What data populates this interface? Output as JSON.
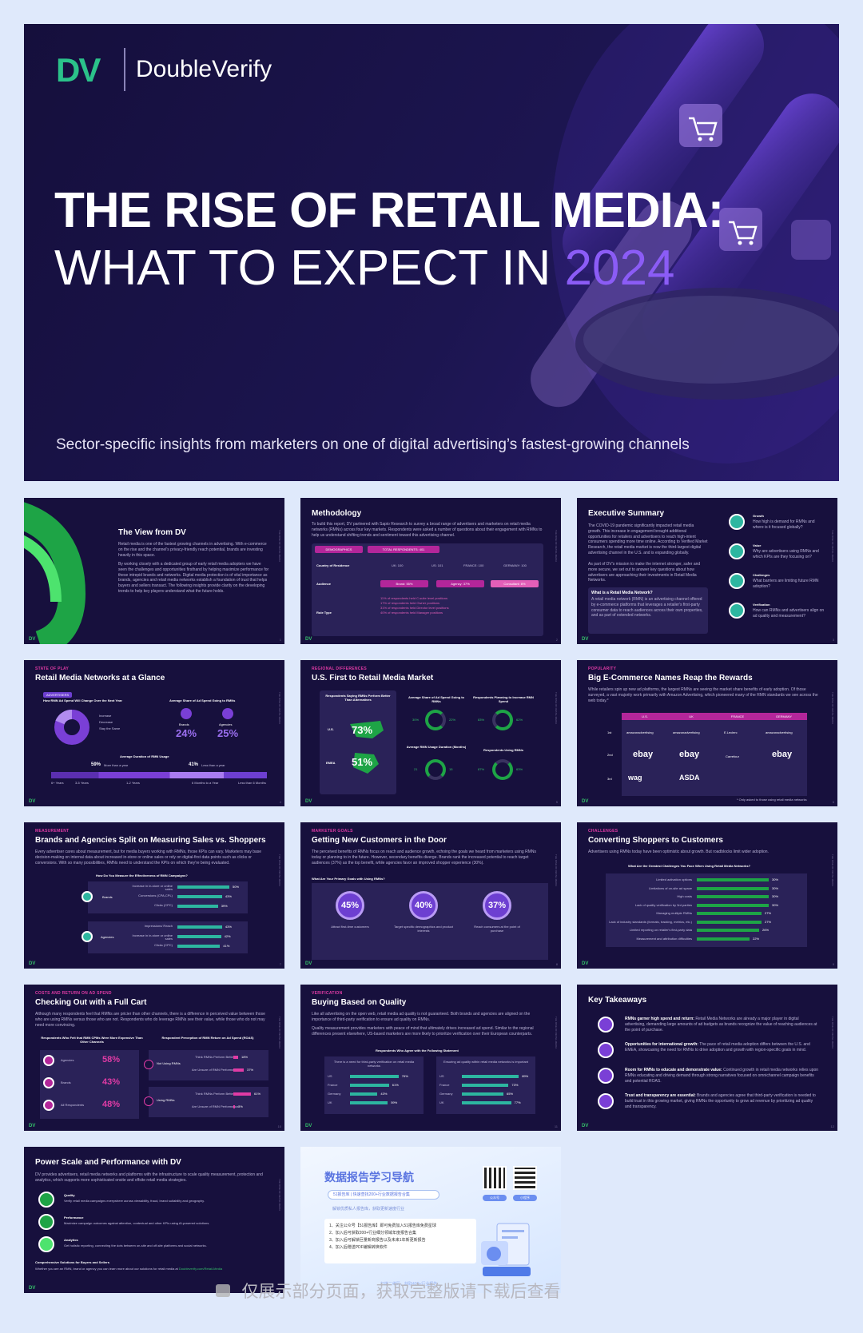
{
  "cover": {
    "logo_mark": "DV",
    "logo_text": "DoubleVerify",
    "title_line1": "THE RISE OF RETAIL MEDIA:",
    "title_line2a": "WHAT TO EXPECT IN ",
    "title_year": "2024",
    "subtitle": "Sector-specific insights from marketers on one of digital advertising’s fastest-growing channels"
  },
  "slides": {
    "view": {
      "title": "The View from DV",
      "p1": "Retail media is one of the fastest growing channels in advertising. With e-commerce on the rise and the channel's privacy-friendly reach potential, brands are investing heavily in this space.",
      "p2": "By working closely with a dedicated group of early retail media adopters we have seen the challenges and opportunities firsthand by helping maximize performance for these intrepid brands and networks. Digital media protection is of vital importance as brands, agencies and retail media networks establish a foundation of trust that helps buyers and sellers transact. The following insights provide clarity on the developing trends to help key players understand what the future holds.",
      "num": "1"
    },
    "method": {
      "title": "Methodology",
      "p": "To build this report, DV partnered with Sapio Research to survey a broad range of advertisers and marketers on retail media networks (RMNs) across four key markets. Respondents were asked a number of questions about their engagement with RMNs to help us understand shifting trends and sentiment toward this advertising channel.",
      "demo": "DEMOGRAPHICS",
      "total": "TOTAL RESPONDENTS: 401",
      "country_lbl": "Country of Residence",
      "uk": "UK: 100",
      "us": "US: 101",
      "fr": "FRANCE: 100",
      "de": "GERMANY: 100",
      "aud_lbl": "Audience",
      "brand": "Brand: 55%",
      "agency": "Agency: 37%",
      "consult": "Consultant: 8%",
      "role_lbl": "Role Type",
      "roles": [
        "11% of respondents held C-suite level positions",
        "17% of respondents held Owner positions",
        "31% of respondents held Director level positions",
        "40% of respondents held Manager positions"
      ],
      "num": "2"
    },
    "exec": {
      "title": "Executive Summary",
      "p1": "The COVID-19 pandemic significantly impacted retail media growth. This increase in engagement brought additional opportunities for retailers and advertisers to reach high-intent consumers spending more time online. According to Verified Market Research, the retail media market is now the third-largest digital advertising channel in the U.S. and is expanding globally.",
      "p2": "As part of DV's mission to make the internet stronger, safer and more secure, we set out to answer key questions about how advertisers are approaching their investments in Retail Media Networks.",
      "box_title": "What is a Retail Media Network?",
      "box_text": "A retail media network (RMN) is an advertising channel offered by e-commerce platforms that leverages a retailer's first-party consumer data to reach audiences across their own properties, and as part of extended networks.",
      "items": [
        {
          "h": "Growth",
          "t": "How high is demand for RMNs and where is it focused globally?"
        },
        {
          "h": "Value",
          "t": "Why are advertisers using RMNs and which KPIs are they focusing on?"
        },
        {
          "h": "Challenges",
          "t": "What barriers are limiting future RMN adoption?"
        },
        {
          "h": "Verification",
          "t": "How can RMNs and advertisers align on ad quality and measurement?"
        }
      ],
      "num": "3"
    },
    "glance": {
      "sec": "STATE OF PLAY",
      "title": "Retail Media Networks at a Glance",
      "q1": "How RMN Ad Spend Will Change Over the Next Year",
      "adv": "ADVERTISERS",
      "legend": [
        "Increase",
        "Decrease",
        "Stay the Same"
      ],
      "q2": "Average Share of Ad Spend Going to RMNs",
      "brands": "Brands",
      "brands_v": "24%",
      "agencies": "Agencies",
      "agencies_v": "25%",
      "q3": "Average Duration of RMN Usage",
      "more": "59%",
      "more_t": "More than a year",
      "less": "41%",
      "less_t": "Less than a year",
      "ticks": [
        "6+ Years",
        "3-5 Years",
        "1-2 Years",
        "6 Months to a Year",
        "Less than 6 Months"
      ],
      "num": "4"
    },
    "us": {
      "sec": "REGIONAL DIFFERENCES",
      "title": "U.S. First to Retail Media Market",
      "h1": "Respondents Saying RMNs Perform Better Than Alternatives",
      "us_lbl": "U.S.",
      "us_v": "73%",
      "emea_lbl": "EMEA",
      "emea_v": "51%",
      "h2": "Average Share of Ad Spend Going to RMNs",
      "h2_us": "30%",
      "h2_emea": "22%",
      "h3": "Respondents Planning to Increase RMN Spend",
      "h3_us": "83%",
      "h3_emea": "62%",
      "h4": "Average RMN Usage Duration (Months)",
      "h4_us": "21",
      "h4_emea": "15",
      "h5": "Respondents Using RMNs",
      "h5_us": "87%",
      "h5_emea": "63%",
      "us_s": "U.S.",
      "emea_s": "EMEA",
      "num": "5"
    },
    "ecom": {
      "sec": "POPULARITY",
      "title": "Big E-Commerce Names Reap the Rewards",
      "p": "While retailers spin up new ad platforms, the largest RMNs are seeing the market share benefits of early adoption. Of those surveyed, a vast majority work primarily with Amazon Advertising, which pioneered many of the RMN standards we see across the web today.*",
      "cols": [
        "U.S.",
        "UK",
        "FRANCE",
        "GERMANY"
      ],
      "ranks": [
        "1st",
        "2nd",
        "3rd"
      ],
      "r1": [
        "amazonadvertising",
        "amazonadvertising",
        "E.Leclerc",
        "amazonadvertising"
      ],
      "r2": [
        "ebay",
        "ebay",
        "Carrefour",
        "ebay"
      ],
      "r3": [
        "wag",
        "ASDA",
        "",
        ""
      ],
      "note": "* Only asked to those using retail media networks",
      "num": "6"
    },
    "measure": {
      "sec": "MEASUREMENT",
      "title": "Brands and Agencies Split on Measuring Sales vs. Shoppers",
      "p": "Every advertiser cares about measurement, but for media buyers working with RMNs, those KPIs can vary. Marketers may base decision-making on internal data about increased in-store or online sales or rely on digital-first data points such as clicks or conversions. With so many possibilities, RMNs need to understand the KPIs on which they're being evaluated.",
      "q": "How Do You Measure the Effectiveness of RMN Campaigns?",
      "brands": "Brands",
      "agencies": "Agencies",
      "b_rows": [
        {
          "l": "Increase in in-store or online sales",
          "v": "50%"
        },
        {
          "l": "Conversions (CPA,CPL)",
          "v": "43%"
        },
        {
          "l": "Clicks (CPC)",
          "v": "39%"
        }
      ],
      "a_rows": [
        {
          "l": "Impressions/ Reach",
          "v": "43%"
        },
        {
          "l": "Increase in in-store or online sales",
          "v": "42%"
        },
        {
          "l": "Clicks (CPC)",
          "v": "41%"
        }
      ],
      "num": "7"
    },
    "goals": {
      "sec": "MARKETER GOALS",
      "title": "Getting New Customers in the Door",
      "p": "The perceived benefits of RMNs focus on reach and audience growth, echoing the goals we heard from marketers using RMNs today or planning to in the future. However, secondary benefits diverge. Brands rank the increased potential to reach target audiences (37%) as the top benefit, while agencies favor an improved shopper experience (30%).",
      "q": "What Are Your Primary Goals with Using RMNs?",
      "items": [
        {
          "v": "45%",
          "t": "Attract first-time customers"
        },
        {
          "v": "40%",
          "t": "Target specific demographics and product interests"
        },
        {
          "v": "37%",
          "t": "Reach consumers at the point of purchase"
        }
      ],
      "num": "8"
    },
    "challenges": {
      "sec": "CHALLENGES",
      "title": "Converting Shoppers to Customers",
      "p": "Advertisers using RMNs today have been optimistic about growth. But roadblocks limit wider adoption.",
      "q": "What Are the Greatest Challenges You Face When Using Retail Media Networks?",
      "rows": [
        {
          "l": "Limited activation options",
          "v": "30%"
        },
        {
          "l": "Limitations of on-site ad space",
          "v": "30%"
        },
        {
          "l": "High costs",
          "v": "30%"
        },
        {
          "l": "Lack of quality verification by 3rd parties",
          "v": "30%"
        },
        {
          "l": "Managing multiple RMNs",
          "v": "27%"
        },
        {
          "l": "Lack of industry standards (formats, tracking, metrics, etc.)",
          "v": "27%"
        },
        {
          "l": "Limited reporting on retailer's first-party data",
          "v": "26%"
        },
        {
          "l": "Measurement and attribution difficulties",
          "v": "22%"
        }
      ],
      "num": "9"
    },
    "costs": {
      "sec": "COSTS AND RETURN ON AD SPEND",
      "title": "Checking Out with a Full Cart",
      "p": "Although many respondents feel that RMNs are pricier than other channels, there is a difference in perceived value between those who are using RMNs versus those who are not. Respondents who do leverage RMNs see their value, while those who do not may need more convincing.",
      "h1": "Respondents Who Felt that RMN CPMs Were More Expensive Than Other Channels",
      "rows": [
        {
          "l": "Agencies",
          "v": "58%"
        },
        {
          "l": "Brands",
          "v": "43%"
        },
        {
          "l": "All Respondents",
          "v": "48%"
        }
      ],
      "h2": "Respondent Perception of RMN Return on Ad Spend (ROAS)",
      "not_using": "Not Using RMNs",
      "using": "Using RMNs",
      "think": "Think RMNs Perform Better",
      "below": "Are Unsure of RMN Performance",
      "nu1": "18%",
      "nu2": "37%",
      "u1": "61%",
      "u2": "3%",
      "num": "10"
    },
    "quality": {
      "sec": "VERIFICATION",
      "title": "Buying Based on Quality",
      "p1": "Like all advertising on the open web, retail media ad quality is not guaranteed. Both brands and agencies are aligned on the importance of third-party verification to ensure ad quality on RMNs.",
      "p2": "Quality measurement provides marketers with peace of mind that ultimately drives increased ad spend. Similar to the regional differences present elsewhere, US-based marketers are more likely to prioritize verification over their European counterparts.",
      "q": "Respondents Who Agree with the Following Statement",
      "left_h": "There is a need for third-party verification on retail media networks",
      "right_h": "Ensuring ad quality within retail media networks is important",
      "left": [
        {
          "l": "US",
          "v": "76%"
        },
        {
          "l": "France",
          "v": "61%"
        },
        {
          "l": "Germany",
          "v": "43%"
        },
        {
          "l": "UK",
          "v": "59%"
        }
      ],
      "right": [
        {
          "l": "US",
          "v": "89%"
        },
        {
          "l": "France",
          "v": "73%"
        },
        {
          "l": "Germany",
          "v": "65%"
        },
        {
          "l": "UK",
          "v": "77%"
        }
      ],
      "num": "11"
    },
    "takeaways": {
      "title": "Key Takeaways",
      "items": [
        {
          "h": "RMNs garner high spend and return:",
          "t": "Retail Media Networks are already a major player in digital advertising, demanding large amounts of ad budgets as brands recognize the value of reaching audiences at the point of purchase."
        },
        {
          "h": "Opportunities for international growth:",
          "t": "The pace of retail media adoption differs between the U.S. and EMEA, showcasing the need for RMNs to drive adoption and growth with region-specific goals in mind."
        },
        {
          "h": "Room for RMNs to educate and demonstrate value:",
          "t": "Continued growth in retail media networks relies upon RMNs educating and driving demand through strong narratives focused on omnichannel campaign benefits and potential ROAS."
        },
        {
          "h": "Trust and transparency are essential:",
          "t": "Brands and agencies agree that third-party verification is needed to build trust in this growing market, giving RMNs the opportunity to grow ad revenue by prioritizing ad quality and transparency."
        }
      ],
      "num": "12"
    },
    "power": {
      "title": "Power Scale and Performance with DV",
      "p": "DV provides advertisers, retail media networks and platforms with the infrastructure to scale quality measurement, protection and analytics, which supports more sophisticated onsite and offsite retail media strategies.",
      "items": [
        {
          "h": "Quality",
          "t": "Verify retail media campaigns everywhere across viewability, fraud, brand suitability and geography."
        },
        {
          "h": "Performance",
          "t": "Maximize campaign outcomes against attention, contextual and other KPIs using AI-powered solutions."
        },
        {
          "h": "Analytics",
          "t": "Get holistic reporting, connecting the dots between on-site and off-site platforms and social networks."
        }
      ],
      "foot_h": "Comprehensive Solutions for Buyers and Sellers",
      "foot_t": "Whether you are an RMN, brand or agency you can learn more about our solutions for retail media at ",
      "foot_link": "Doubleverify.com/Retail-Media"
    }
  },
  "promo": {
    "title": "数据报告学习导航",
    "search": "51报告库 | 快速查找200+行业数据报告合集",
    "tag1": "公众号",
    "tag2": "小程序",
    "sub": "解锁优质私人报告库，获取更新速度行业",
    "list": [
      "1、关注公众号【51报告库】即可免费加入51报告库免费星球",
      "2、加入后可获取200+行业细分领域年度报告合集",
      "3、加入后可解锁巨量新商报告以及未来1年新更新报告",
      "4、加入后赠送PDF编辑转换软件"
    ],
    "foot": "扫描二维码，获取400+行业报告"
  },
  "watermark": "仅展示部分页面，获取完整版请下载后查看",
  "side_text": "THE RISE OF RETAIL MEDIA"
}
